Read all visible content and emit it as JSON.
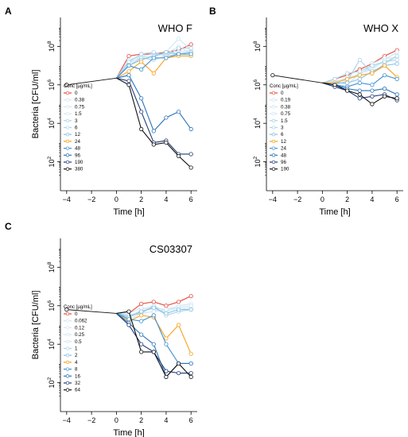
{
  "colors": {
    "0": "#e8473a",
    "very_light": "#cfe6f3",
    "light": "#a9d3ec",
    "mid_light": "#86c1e4",
    "orange": "#f5a21b",
    "blue_mid": "#3f92d0",
    "blue": "#2a74b8",
    "navy": "#1f3a78",
    "dark_navy": "#1b2550",
    "black": "#111111"
  },
  "chart_data": [
    {
      "panel_label": "A",
      "type": "line",
      "title": "WHO F",
      "xlabel": "Time [h]",
      "ylabel": "Bacteria [CFU/ml]",
      "x_ticks": [
        -4,
        -2,
        0,
        2,
        4,
        6
      ],
      "y_ticks": [
        {
          "exp": 2,
          "label": "10"
        },
        {
          "exp": 4,
          "label": "10"
        },
        {
          "exp": 6,
          "label": "10"
        },
        {
          "exp": 8,
          "label": "10"
        }
      ],
      "ylim_log10": [
        0.5,
        9.5
      ],
      "xlim": [
        -4.5,
        6.5
      ],
      "y_scale": "log",
      "legend": {
        "title": "Conc [µg/mL]",
        "placement": "left-middle"
      },
      "series": [
        {
          "name": "0",
          "color": "#e8473a",
          "x": [
            1,
            2,
            3,
            4,
            5,
            6
          ],
          "y_log10": [
            7.5,
            7.6,
            7.6,
            7.7,
            7.8,
            8.1
          ]
        },
        {
          "name": "0.38",
          "color": "#cfe6f3",
          "x": [
            1,
            2,
            3,
            4,
            5,
            6
          ],
          "y_log10": [
            7.3,
            7.5,
            7.6,
            7.6,
            7.7,
            7.8
          ]
        },
        {
          "name": "0.75",
          "color": "#cfe6f3",
          "x": [
            1,
            2,
            3,
            4,
            5,
            6
          ],
          "y_log10": [
            7.2,
            7.4,
            7.5,
            7.6,
            8.0,
            7.6
          ]
        },
        {
          "name": "1.5",
          "color": "#cfe6f3",
          "x": [
            1,
            2,
            3,
            4,
            5,
            6
          ],
          "y_log10": [
            7.1,
            7.5,
            7.4,
            7.7,
            8.4,
            7.8
          ]
        },
        {
          "name": "3",
          "color": "#a9d3ec",
          "x": [
            1,
            2,
            3,
            4,
            5,
            6
          ],
          "y_log10": [
            7.0,
            7.4,
            7.3,
            7.5,
            7.6,
            7.7
          ]
        },
        {
          "name": "6",
          "color": "#a9d3ec",
          "x": [
            1,
            2,
            3,
            4,
            5,
            6
          ],
          "y_log10": [
            7.2,
            7.6,
            7.7,
            7.5,
            7.9,
            7.9
          ]
        },
        {
          "name": "12",
          "color": "#86c1e4",
          "x": [
            1,
            2,
            3,
            4,
            5,
            6
          ],
          "y_log10": [
            7.0,
            7.3,
            7.5,
            7.7,
            7.6,
            7.7
          ]
        },
        {
          "name": "24",
          "color": "#f5a21b",
          "x": [
            1,
            2,
            3,
            4,
            5,
            6
          ],
          "y_log10": [
            6.7,
            7.2,
            6.6,
            7.4,
            7.5,
            7.5
          ]
        },
        {
          "name": "48",
          "color": "#3f92d0",
          "x": [
            1,
            2,
            3,
            4,
            5,
            6
          ],
          "y_log10": [
            7.0,
            6.8,
            7.4,
            7.4,
            7.6,
            7.6
          ]
        },
        {
          "name": "96",
          "color": "#2a74b8",
          "x": [
            1,
            2,
            3,
            4,
            5,
            6
          ],
          "y_log10": [
            6.5,
            5.3,
            3.6,
            4.3,
            4.6,
            3.7
          ]
        },
        {
          "name": "190",
          "color": "#1f3a78",
          "x": [
            1,
            2,
            3,
            4,
            5,
            6
          ],
          "y_log10": [
            6.2,
            4.6,
            3.0,
            3.1,
            2.4,
            2.4
          ]
        },
        {
          "name": "380",
          "color": "#111111",
          "x": [
            1,
            2,
            3,
            4,
            5,
            6
          ],
          "y_log10": [
            6.0,
            3.7,
            2.9,
            3.0,
            2.3,
            1.7
          ]
        }
      ],
      "shared": {
        "color": "#111111",
        "x": [
          -4,
          0
        ],
        "y_log10": [
          6.0,
          6.35
        ]
      },
      "start_point": {
        "x": 0,
        "y_log10": 6.35
      }
    },
    {
      "panel_label": "B",
      "type": "line",
      "title": "WHO X",
      "xlabel": "Time [h]",
      "ylabel": "",
      "x_ticks": [
        -4,
        -2,
        0,
        2,
        4,
        6
      ],
      "y_ticks": [
        {
          "exp": 2,
          "label": "10"
        },
        {
          "exp": 4,
          "label": "10"
        },
        {
          "exp": 6,
          "label": "10"
        },
        {
          "exp": 8,
          "label": "10"
        }
      ],
      "ylim_log10": [
        0.5,
        9.5
      ],
      "xlim": [
        -4.5,
        6.5
      ],
      "y_scale": "log",
      "legend": {
        "title": "Conc [µg/mL]",
        "placement": "left-middle"
      },
      "series": [
        {
          "name": "0",
          "color": "#e8473a",
          "x": [
            1,
            2,
            3,
            4,
            5,
            6
          ],
          "y_log10": [
            6.3,
            6.5,
            6.8,
            7.1,
            7.5,
            7.8
          ]
        },
        {
          "name": "0.19",
          "color": "#cfe6f3",
          "x": [
            1,
            2,
            3,
            4,
            5,
            6
          ],
          "y_log10": [
            6.2,
            6.3,
            6.6,
            6.9,
            7.2,
            7.5
          ]
        },
        {
          "name": "0.38",
          "color": "#cfe6f3",
          "x": [
            1,
            2,
            3,
            4,
            5,
            6
          ],
          "y_log10": [
            6.1,
            6.4,
            6.5,
            7.1,
            7.4,
            7.4
          ]
        },
        {
          "name": "0.75",
          "color": "#cfe6f3",
          "x": [
            1,
            2,
            3,
            4,
            5,
            6
          ],
          "y_log10": [
            6.2,
            6.0,
            6.6,
            6.8,
            7.3,
            7.7
          ]
        },
        {
          "name": "1.5",
          "color": "#a9d3ec",
          "x": [
            1,
            2,
            3,
            4,
            5,
            6
          ],
          "y_log10": [
            6.0,
            6.2,
            7.3,
            6.6,
            7.1,
            7.5
          ]
        },
        {
          "name": "3",
          "color": "#a9d3ec",
          "x": [
            1,
            2,
            3,
            4,
            5,
            6
          ],
          "y_log10": [
            6.3,
            6.6,
            6.7,
            7.0,
            7.2,
            7.3
          ]
        },
        {
          "name": "6",
          "color": "#86c1e4",
          "x": [
            1,
            2,
            3,
            4,
            5,
            6
          ],
          "y_log10": [
            6.1,
            6.1,
            6.3,
            6.7,
            7.0,
            7.1
          ]
        },
        {
          "name": "12",
          "color": "#f5a21b",
          "x": [
            1,
            2,
            3,
            4,
            5,
            6
          ],
          "y_log10": [
            6.1,
            6.3,
            6.5,
            6.6,
            7.0,
            6.4
          ]
        },
        {
          "name": "24",
          "color": "#3f92d0",
          "x": [
            1,
            2,
            3,
            4,
            5,
            6
          ],
          "y_log10": [
            6.0,
            5.9,
            6.1,
            6.0,
            6.5,
            6.3
          ]
        },
        {
          "name": "48",
          "color": "#2a74b8",
          "x": [
            1,
            2,
            3,
            4,
            5,
            6
          ],
          "y_log10": [
            6.0,
            5.8,
            5.7,
            5.7,
            5.8,
            5.5
          ]
        },
        {
          "name": "96",
          "color": "#1f3a78",
          "x": [
            1,
            2,
            3,
            4,
            5,
            6
          ],
          "y_log10": [
            5.9,
            5.7,
            5.3,
            5.4,
            5.5,
            5.2
          ]
        },
        {
          "name": "190",
          "color": "#111111",
          "x": [
            1,
            2,
            3,
            4,
            5,
            6
          ],
          "y_log10": [
            6.0,
            5.7,
            5.5,
            5.0,
            5.4,
            5.3
          ]
        }
      ],
      "shared": {
        "color": "#111111",
        "x": [
          -4,
          0
        ],
        "y_log10": [
          6.5,
          6.1
        ]
      },
      "start_point": {
        "x": 0,
        "y_log10": 6.1
      }
    },
    {
      "panel_label": "C",
      "type": "line",
      "title": "CS03307",
      "xlabel": "Time [h]",
      "ylabel": "Bacteria [CFU/ml]",
      "x_ticks": [
        -4,
        -2,
        0,
        2,
        4,
        6
      ],
      "y_ticks": [
        {
          "exp": 2,
          "label": "10"
        },
        {
          "exp": 4,
          "label": "10"
        },
        {
          "exp": 6,
          "label": "10"
        },
        {
          "exp": 8,
          "label": "10"
        }
      ],
      "ylim_log10": [
        0.5,
        9.5
      ],
      "xlim": [
        -4.5,
        6.5
      ],
      "y_scale": "log",
      "legend": {
        "title": "Conc [µg/mL]",
        "placement": "left-middle"
      },
      "series": [
        {
          "name": "0",
          "color": "#e8473a",
          "x": [
            1,
            2,
            3,
            4,
            5,
            6
          ],
          "y_log10": [
            5.6,
            6.1,
            6.2,
            6.0,
            6.2,
            6.5
          ]
        },
        {
          "name": "0.062",
          "color": "#cfe6f3",
          "x": [
            1,
            2,
            3,
            4,
            5,
            6
          ],
          "y_log10": [
            5.5,
            5.7,
            5.9,
            5.8,
            6.0,
            6.1
          ]
        },
        {
          "name": "0.12",
          "color": "#cfe6f3",
          "x": [
            1,
            2,
            3,
            4,
            5,
            6
          ],
          "y_log10": [
            5.4,
            5.8,
            6.0,
            5.7,
            5.9,
            6.0
          ]
        },
        {
          "name": "0.25",
          "color": "#cfe6f3",
          "x": [
            1,
            2,
            3,
            4,
            5,
            6
          ],
          "y_log10": [
            5.6,
            5.9,
            5.8,
            5.6,
            5.8,
            5.9
          ]
        },
        {
          "name": "0.5",
          "color": "#cfe6f3",
          "x": [
            1,
            2,
            3,
            4,
            5,
            6
          ],
          "y_log10": [
            5.3,
            5.6,
            5.7,
            5.8,
            5.9,
            6.0
          ]
        },
        {
          "name": "1",
          "color": "#a9d3ec",
          "x": [
            1,
            2,
            3,
            4,
            5,
            6
          ],
          "y_log10": [
            5.5,
            5.6,
            6.0,
            5.5,
            5.7,
            5.8
          ]
        },
        {
          "name": "2",
          "color": "#86c1e4",
          "x": [
            1,
            2,
            3,
            4,
            5,
            6
          ],
          "y_log10": [
            5.4,
            5.7,
            5.9,
            5.6,
            5.8,
            5.8
          ]
        },
        {
          "name": "4",
          "color": "#f5a21b",
          "x": [
            1,
            2,
            3,
            4,
            5,
            6
          ],
          "y_log10": [
            5.2,
            5.5,
            5.4,
            4.3,
            5.0,
            3.5
          ]
        },
        {
          "name": "8",
          "color": "#3f92d0",
          "x": [
            1,
            2,
            3,
            4,
            5,
            6
          ],
          "y_log10": [
            5.3,
            5.2,
            5.5,
            4.0,
            3.0,
            3.0
          ]
        },
        {
          "name": "16",
          "color": "#2a74b8",
          "x": [
            1,
            2,
            3,
            4,
            5,
            6
          ],
          "y_log10": [
            5.1,
            4.5,
            4.0,
            2.3,
            3.0,
            3.0
          ]
        },
        {
          "name": "32",
          "color": "#1f3a78",
          "x": [
            1,
            2,
            3,
            4,
            5,
            6
          ],
          "y_log10": [
            5.0,
            4.0,
            3.6,
            2.6,
            2.5,
            2.5
          ]
        },
        {
          "name": "64",
          "color": "#111111",
          "x": [
            1,
            2,
            3,
            4,
            5,
            6
          ],
          "y_log10": [
            5.7,
            3.6,
            3.6,
            2.3,
            3.0,
            2.3
          ]
        }
      ],
      "shared": {
        "color": "#111111",
        "x": [
          -4,
          0
        ],
        "y_log10": [
          5.8,
          5.6
        ]
      },
      "start_point": {
        "x": 0,
        "y_log10": 5.6
      }
    }
  ]
}
